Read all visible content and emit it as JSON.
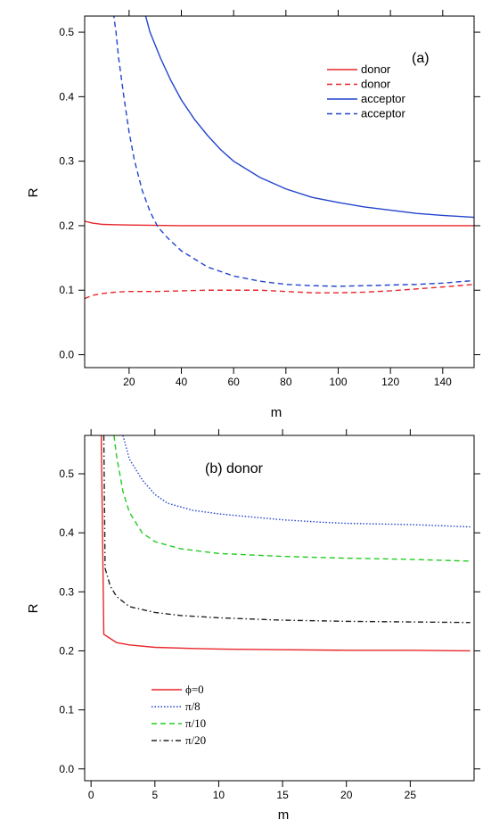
{
  "chart_data": [
    {
      "type": "line",
      "panel_label": "(a)",
      "title": "",
      "xlabel": "m",
      "ylabel": "R",
      "xlim": [
        3,
        152
      ],
      "ylim": [
        -0.02,
        0.525
      ],
      "xticks": [
        20,
        40,
        60,
        80,
        100,
        120,
        140
      ],
      "yticks": [
        0.0,
        0.1,
        0.2,
        0.3,
        0.4,
        0.5
      ],
      "x_tick_labels": [
        "20",
        "40",
        "60",
        "80",
        "100",
        "120",
        "140"
      ],
      "y_tick_labels": [
        "0.0",
        "0.1",
        "0.2",
        "0.3",
        "0.4",
        "0.5"
      ],
      "grid": false,
      "legend_position": "upper-right",
      "series": [
        {
          "name": "donor",
          "color": "#e8262a",
          "dash": "solid",
          "points": [
            [
              3,
              0.207
            ],
            [
              6,
              0.204
            ],
            [
              10,
              0.202
            ],
            [
              20,
              0.201
            ],
            [
              40,
              0.2
            ],
            [
              60,
              0.2
            ],
            [
              80,
              0.2
            ],
            [
              100,
              0.2
            ],
            [
              120,
              0.2
            ],
            [
              140,
              0.2
            ],
            [
              152,
              0.2
            ]
          ]
        },
        {
          "name": "donor",
          "color": "#e8262a",
          "dash": "dashed",
          "points": [
            [
              3,
              0.087
            ],
            [
              6,
              0.092
            ],
            [
              10,
              0.095
            ],
            [
              15,
              0.097
            ],
            [
              20,
              0.098
            ],
            [
              30,
              0.098
            ],
            [
              40,
              0.099
            ],
            [
              50,
              0.1
            ],
            [
              60,
              0.1
            ],
            [
              70,
              0.1
            ],
            [
              80,
              0.098
            ],
            [
              90,
              0.096
            ],
            [
              100,
              0.096
            ],
            [
              110,
              0.097
            ],
            [
              120,
              0.099
            ],
            [
              130,
              0.102
            ],
            [
              140,
              0.105
            ],
            [
              152,
              0.109
            ]
          ]
        },
        {
          "name": "acceptor",
          "color": "#2244cc",
          "dash": "solid",
          "points": [
            [
              26,
              0.53
            ],
            [
              28,
              0.5
            ],
            [
              32,
              0.46
            ],
            [
              36,
              0.425
            ],
            [
              40,
              0.395
            ],
            [
              45,
              0.365
            ],
            [
              50,
              0.34
            ],
            [
              55,
              0.318
            ],
            [
              60,
              0.3
            ],
            [
              70,
              0.275
            ],
            [
              80,
              0.257
            ],
            [
              90,
              0.244
            ],
            [
              100,
              0.236
            ],
            [
              110,
              0.229
            ],
            [
              120,
              0.224
            ],
            [
              130,
              0.219
            ],
            [
              140,
              0.216
            ],
            [
              152,
              0.213
            ]
          ]
        },
        {
          "name": "acceptor",
          "color": "#2244cc",
          "dash": "dashed",
          "points": [
            [
              14,
              0.53
            ],
            [
              15,
              0.5
            ],
            [
              16,
              0.46
            ],
            [
              18,
              0.4
            ],
            [
              20,
              0.345
            ],
            [
              22,
              0.302
            ],
            [
              25,
              0.255
            ],
            [
              28,
              0.222
            ],
            [
              31,
              0.198
            ],
            [
              35,
              0.18
            ],
            [
              40,
              0.161
            ],
            [
              50,
              0.136
            ],
            [
              60,
              0.122
            ],
            [
              70,
              0.114
            ],
            [
              80,
              0.109
            ],
            [
              90,
              0.107
            ],
            [
              100,
              0.106
            ],
            [
              110,
              0.107
            ],
            [
              120,
              0.108
            ],
            [
              130,
              0.109
            ],
            [
              140,
              0.111
            ],
            [
              152,
              0.115
            ]
          ]
        }
      ]
    },
    {
      "type": "line",
      "panel_label": "(b)  donor",
      "title": "",
      "xlabel": "m",
      "ylabel": "R",
      "xlim": [
        -0.5,
        30
      ],
      "ylim": [
        -0.02,
        0.565
      ],
      "xticks": [
        0,
        5,
        10,
        15,
        20,
        25
      ],
      "yticks": [
        0.0,
        0.1,
        0.2,
        0.3,
        0.4,
        0.5
      ],
      "x_tick_labels": [
        "0",
        "5",
        "10",
        "15",
        "20",
        "25"
      ],
      "y_tick_labels": [
        "0.0",
        "0.1",
        "0.2",
        "0.3",
        "0.4",
        "0.5"
      ],
      "grid": false,
      "legend_position": "lower-left",
      "series": [
        {
          "name": "ϕ=0",
          "color": "#e8262a",
          "dash": "solid",
          "points": [
            [
              0.8,
              0.565
            ],
            [
              1,
              0.228
            ],
            [
              2,
              0.214
            ],
            [
              3,
              0.21
            ],
            [
              5,
              0.206
            ],
            [
              8,
              0.204
            ],
            [
              10,
              0.203
            ],
            [
              15,
              0.202
            ],
            [
              20,
              0.201
            ],
            [
              25,
              0.201
            ],
            [
              29.7,
              0.2
            ]
          ]
        },
        {
          "name": "π/8",
          "color": "#2244cc",
          "dash": "dotted",
          "points": [
            [
              2.5,
              0.565
            ],
            [
              3,
              0.525
            ],
            [
              4,
              0.49
            ],
            [
              5,
              0.465
            ],
            [
              6,
              0.45
            ],
            [
              8,
              0.438
            ],
            [
              10,
              0.432
            ],
            [
              12,
              0.428
            ],
            [
              15,
              0.422
            ],
            [
              18,
              0.418
            ],
            [
              20,
              0.416
            ],
            [
              25,
              0.414
            ],
            [
              29.7,
              0.41
            ]
          ]
        },
        {
          "name": "π/10",
          "color": "#22cc22",
          "dash": "dashed",
          "points": [
            [
              1.8,
              0.565
            ],
            [
              2,
              0.53
            ],
            [
              2.5,
              0.47
            ],
            [
              3,
              0.435
            ],
            [
              4,
              0.4
            ],
            [
              5,
              0.385
            ],
            [
              7,
              0.373
            ],
            [
              10,
              0.365
            ],
            [
              15,
              0.36
            ],
            [
              20,
              0.357
            ],
            [
              25,
              0.355
            ],
            [
              29.7,
              0.352
            ]
          ]
        },
        {
          "name": "π/20",
          "color": "#222222",
          "dash": "dashdot",
          "points": [
            [
              1,
              0.565
            ],
            [
              1.1,
              0.34
            ],
            [
              1.5,
              0.31
            ],
            [
              2,
              0.292
            ],
            [
              3,
              0.275
            ],
            [
              5,
              0.265
            ],
            [
              7,
              0.26
            ],
            [
              10,
              0.256
            ],
            [
              15,
              0.252
            ],
            [
              20,
              0.25
            ],
            [
              25,
              0.249
            ],
            [
              29.7,
              0.248
            ]
          ]
        }
      ]
    }
  ]
}
